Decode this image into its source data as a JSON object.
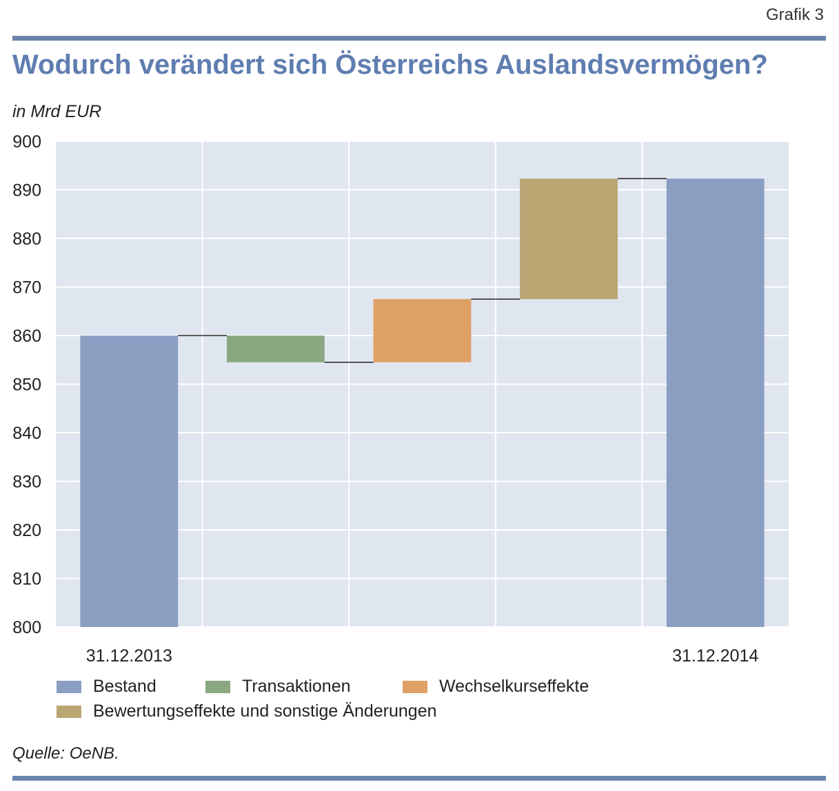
{
  "header": {
    "grafik_label": "Grafik 3",
    "title": "Wodurch verändert sich Österreichs Auslandsvermögen?",
    "unit": "in Mrd EUR"
  },
  "footer": {
    "source": "Quelle: OeNB."
  },
  "colors": {
    "rule": "#6b83ad",
    "title": "#5f7db0",
    "plot_background": "#e0e6f0",
    "grid": "#ffffff",
    "bestand": "#8a9ec2",
    "transaktionen": "#89a882",
    "wechselkurseffekte": "#dfa066",
    "bewertungseffekte": "#b9a673",
    "connector": "#222222"
  },
  "chart_data": {
    "type": "bar",
    "subtype": "waterfall",
    "categories": [
      "31.12.2013",
      "",
      "",
      "",
      "31.12.2014"
    ],
    "bars": [
      {
        "category": "31.12.2013",
        "series": "Bestand",
        "from": 800,
        "to": 860.0
      },
      {
        "category": "",
        "series": "Transaktionen",
        "from": 860.0,
        "to": 854.5
      },
      {
        "category": "",
        "series": "Wechselkurseffekte",
        "from": 854.5,
        "to": 867.5
      },
      {
        "category": "",
        "series": "Bewertungseffekte und sonstige Änderungen",
        "from": 867.5,
        "to": 892.3
      },
      {
        "category": "31.12.2014",
        "series": "Bestand",
        "from": 800,
        "to": 892.3
      }
    ],
    "legend": [
      {
        "label": "Bestand",
        "color_key": "bestand"
      },
      {
        "label": "Transaktionen",
        "color_key": "transaktionen"
      },
      {
        "label": "Wechselkurseffekte",
        "color_key": "wechselkurseffekte"
      },
      {
        "label": "Bewertungseffekte und sonstige Änderungen",
        "color_key": "bewertungseffekte"
      }
    ],
    "ylim": [
      800,
      900
    ],
    "yticks": [
      800,
      810,
      820,
      830,
      840,
      850,
      860,
      870,
      880,
      890,
      900
    ],
    "grid": true,
    "legend_position": "bottom"
  }
}
